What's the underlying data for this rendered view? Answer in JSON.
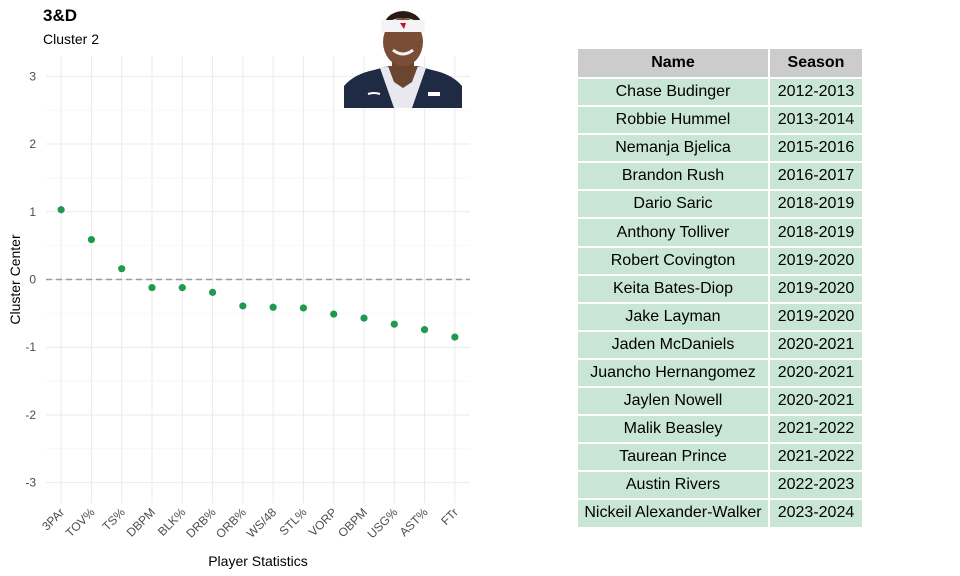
{
  "header": {
    "title": "3&D",
    "subtitle": "Cluster 2"
  },
  "photo": {
    "icon": "player-headshot-icon"
  },
  "colors": {
    "point": "#1e9a4e",
    "zero_line": "#9a9a9a",
    "grid": "#ebebeb",
    "table_header": "#cccccc",
    "table_row": "#c9e6d5"
  },
  "chart_data": {
    "type": "scatter",
    "title": "3&D",
    "subtitle": "Cluster 2",
    "xlabel": "Player Statistics",
    "ylabel": "Cluster Center",
    "categories": [
      "3PAr",
      "TOV%",
      "TS%",
      "DBPM",
      "BLK%",
      "DRB%",
      "ORB%",
      "WS/48",
      "STL%",
      "VORP",
      "OBPM",
      "USG%",
      "AST%",
      "FTr"
    ],
    "values": [
      1.03,
      0.59,
      0.16,
      -0.12,
      -0.12,
      -0.19,
      -0.39,
      -0.41,
      -0.42,
      -0.51,
      -0.57,
      -0.66,
      -0.74,
      -0.85
    ],
    "ylim": [
      -3.3,
      3.3
    ],
    "yticks": [
      -3,
      -2,
      -1,
      0,
      1,
      2,
      3
    ],
    "reference_line": 0,
    "grid": true
  },
  "table": {
    "headers": [
      "Name",
      "Season"
    ],
    "rows": [
      [
        "Chase Budinger",
        "2012-2013"
      ],
      [
        "Robbie Hummel",
        "2013-2014"
      ],
      [
        "Nemanja Bjelica",
        "2015-2016"
      ],
      [
        "Brandon Rush",
        "2016-2017"
      ],
      [
        "Dario Saric",
        "2018-2019"
      ],
      [
        "Anthony Tolliver",
        "2018-2019"
      ],
      [
        "Robert Covington",
        "2019-2020"
      ],
      [
        "Keita Bates-Diop",
        "2019-2020"
      ],
      [
        "Jake Layman",
        "2019-2020"
      ],
      [
        "Jaden McDaniels",
        "2020-2021"
      ],
      [
        "Juancho Hernangomez",
        "2020-2021"
      ],
      [
        "Jaylen Nowell",
        "2020-2021"
      ],
      [
        "Malik Beasley",
        "2021-2022"
      ],
      [
        "Taurean Prince",
        "2021-2022"
      ],
      [
        "Austin Rivers",
        "2022-2023"
      ],
      [
        "Nickeil Alexander-Walker",
        "2023-2024"
      ]
    ]
  }
}
